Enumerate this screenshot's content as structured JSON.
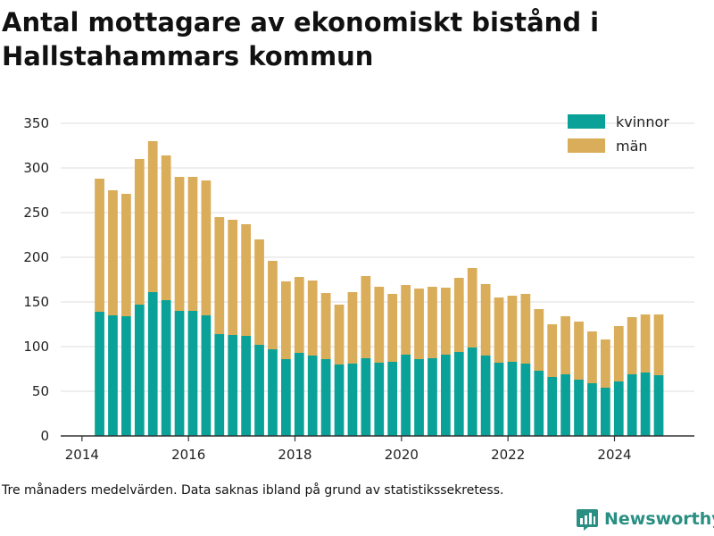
{
  "title": "Antal mottagare av ekonomiskt bistånd i Hallstahammars kommun",
  "footnote": "Tre månaders medelvärden. Data saknas ibland på grund av statistikssekretess.",
  "brand": "Newsworthy",
  "colors": {
    "kvinnor": "#0aa298",
    "man": "#d9ad5a",
    "grid": "#dddddd",
    "axis": "#333333",
    "brand": "#2a8f82"
  },
  "chart_data": {
    "type": "bar",
    "stacked": true,
    "legend_position": "top-right",
    "grid": true,
    "ylim": [
      0,
      350
    ],
    "y_ticks": [
      0,
      50,
      100,
      150,
      200,
      250,
      300,
      350
    ],
    "xlim": [
      2013.6,
      2025.5
    ],
    "x_ticks": [
      2014,
      2016,
      2018,
      2020,
      2022,
      2024
    ],
    "x": [
      2014.33,
      2014.58,
      2014.83,
      2015.08,
      2015.33,
      2015.58,
      2015.83,
      2016.08,
      2016.33,
      2016.58,
      2016.83,
      2017.08,
      2017.33,
      2017.58,
      2017.83,
      2018.08,
      2018.33,
      2018.58,
      2018.83,
      2019.08,
      2019.33,
      2019.58,
      2019.83,
      2020.08,
      2020.33,
      2020.58,
      2020.83,
      2021.08,
      2021.33,
      2021.58,
      2021.83,
      2022.08,
      2022.33,
      2022.58,
      2022.83,
      2023.08,
      2023.33,
      2023.58,
      2023.83,
      2024.08,
      2024.33,
      2024.58,
      2024.83
    ],
    "series": [
      {
        "name": "kvinnor",
        "values": [
          139,
          135,
          134,
          147,
          161,
          152,
          140,
          140,
          135,
          114,
          113,
          112,
          102,
          97,
          86,
          93,
          90,
          86,
          80,
          81,
          87,
          82,
          83,
          91,
          86,
          87,
          91,
          94,
          99,
          90,
          82,
          83,
          81,
          73,
          66,
          69,
          63,
          59,
          54,
          61,
          69,
          71,
          68
        ]
      },
      {
        "name": "män",
        "values": [
          149,
          140,
          137,
          163,
          169,
          162,
          150,
          150,
          151,
          131,
          129,
          125,
          118,
          99,
          87,
          85,
          84,
          74,
          67,
          80,
          92,
          85,
          76,
          78,
          79,
          80,
          75,
          83,
          89,
          80,
          73,
          74,
          78,
          69,
          59,
          65,
          65,
          58,
          54,
          62,
          64,
          65,
          68
        ]
      }
    ]
  }
}
